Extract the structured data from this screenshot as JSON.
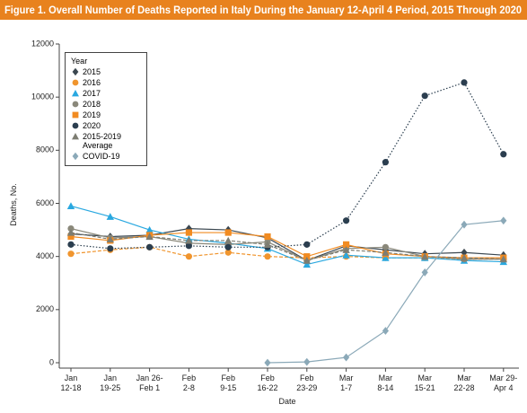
{
  "chart_data": {
    "type": "line",
    "title": "Figure 1. Overall Number of Deaths Reported in Italy During the January 12-April 4 Period, 2015 Through 2020",
    "x_label": "Date",
    "y_label": "Deaths, No.",
    "legend_title": "Year",
    "legend_position": "upper left",
    "categories": [
      [
        "Jan",
        "12-18"
      ],
      [
        "Jan",
        "19-25"
      ],
      [
        "Jan 26-",
        "Feb 1"
      ],
      [
        "Feb",
        "2-8"
      ],
      [
        "Feb",
        "9-15"
      ],
      [
        "Feb",
        "16-22"
      ],
      [
        "Feb",
        "23-29"
      ],
      [
        "Mar",
        "1-7"
      ],
      [
        "Mar",
        "8-14"
      ],
      [
        "Mar",
        "15-21"
      ],
      [
        "Mar",
        "22-28"
      ],
      [
        "Mar 29-",
        "Apr 4"
      ]
    ],
    "ylim": [
      0,
      12000
    ],
    "yticks": [
      0,
      2000,
      4000,
      6000,
      8000,
      10000,
      12000
    ],
    "series": [
      {
        "name": "2015",
        "color": "#3b4750",
        "marker": "diamond",
        "line_style": "solid",
        "values": [
          4850,
          4750,
          4800,
          5050,
          5000,
          4700,
          3850,
          4400,
          4250,
          4100,
          4150,
          4050
        ]
      },
      {
        "name": "2016",
        "color": "#f0952e",
        "marker": "circle",
        "line_style": "dashed",
        "values": [
          4100,
          4250,
          4350,
          4000,
          4150,
          4000,
          3950,
          4000,
          3950,
          3950,
          3900,
          3900
        ]
      },
      {
        "name": "2017",
        "color": "#29a8e0",
        "marker": "triangle",
        "line_style": "solid",
        "values": [
          5900,
          5500,
          5000,
          4650,
          4500,
          4300,
          3700,
          4050,
          3950,
          3950,
          3850,
          3800
        ]
      },
      {
        "name": "2018",
        "color": "#8a887a",
        "marker": "circle",
        "line_style": "solid",
        "values": [
          5050,
          4700,
          4750,
          4500,
          4450,
          4550,
          3850,
          4300,
          4350,
          4000,
          3900,
          3900
        ]
      },
      {
        "name": "2019",
        "color": "#f18b21",
        "marker": "square",
        "line_style": "solid",
        "values": [
          4750,
          4600,
          4800,
          4900,
          4900,
          4750,
          4000,
          4450,
          4100,
          4000,
          3950,
          3950
        ]
      },
      {
        "name": "2020",
        "color": "#2b3e4f",
        "marker": "circle",
        "line_style": "dotted",
        "values": [
          4450,
          4300,
          4350,
          4400,
          4350,
          4350,
          4450,
          5350,
          7550,
          10050,
          10550,
          7850
        ]
      },
      {
        "name": "2015-2019 Average",
        "color": "#7d7d72",
        "marker": "triangle",
        "line_style": "dashed",
        "values": [
          4900,
          4650,
          4750,
          4600,
          4600,
          4450,
          3850,
          4250,
          4150,
          4000,
          3950,
          3900
        ]
      },
      {
        "name": "COVID-19",
        "color": "#8ba9b8",
        "marker": "diamond",
        "line_style": "solid",
        "values": [
          null,
          null,
          null,
          null,
          null,
          0,
          30,
          200,
          1200,
          3400,
          5200,
          5350
        ]
      }
    ]
  }
}
